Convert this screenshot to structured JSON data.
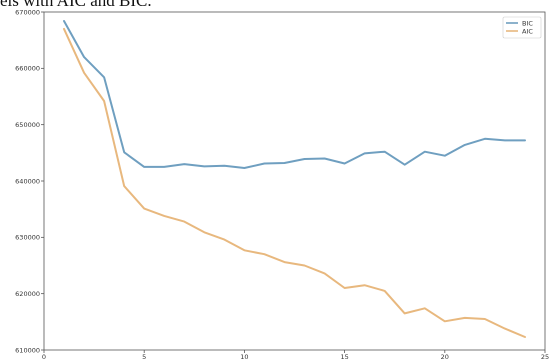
{
  "caption": "els with AIC and BIC.",
  "chart_data": {
    "type": "line",
    "title": "",
    "xlabel": "",
    "ylabel": "",
    "x": [
      1,
      2,
      3,
      4,
      5,
      6,
      7,
      8,
      9,
      10,
      11,
      12,
      13,
      14,
      15,
      16,
      17,
      18,
      19,
      20,
      21,
      22,
      23,
      24
    ],
    "series": [
      {
        "name": "BIC",
        "color": "#6f9fc0",
        "values": [
          668400,
          662000,
          658400,
          645100,
          642500,
          642500,
          643000,
          642600,
          642700,
          642300,
          643100,
          643200,
          643900,
          644000,
          643100,
          644900,
          645200,
          642900,
          645200,
          644500,
          646400,
          647500,
          647200,
          647200
        ]
      },
      {
        "name": "AIC",
        "color": "#e8b87e",
        "values": [
          667000,
          659200,
          654200,
          639100,
          635100,
          633800,
          632800,
          630900,
          629600,
          627700,
          627000,
          625600,
          625000,
          623600,
          621000,
          621500,
          620500,
          616500,
          617400,
          615100,
          615700,
          615500,
          613800,
          612300
        ]
      }
    ],
    "xlim": [
      0,
      25
    ],
    "ylim": [
      610000,
      670000
    ],
    "xticks": [
      0,
      5,
      10,
      15,
      20,
      25
    ],
    "xtick_labels": [
      "0",
      "5",
      "10",
      "15",
      "20",
      "25"
    ],
    "yticks": [
      610000,
      620000,
      630000,
      640000,
      650000,
      660000,
      670000
    ],
    "ytick_labels": [
      "610000",
      "620000",
      "630000",
      "640000",
      "650000",
      "660000",
      "670000"
    ],
    "grid": false,
    "legend_position": "top-right"
  }
}
